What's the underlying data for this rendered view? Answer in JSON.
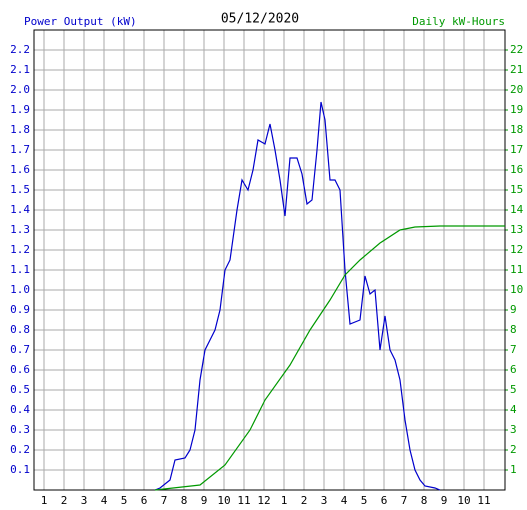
{
  "chart_data": {
    "type": "line",
    "title": "05/12/2020",
    "y_label": "Power Output (kW)",
    "y2_label": "Daily kW-Hours",
    "xlim": [
      0.5,
      24.05
    ],
    "xticks": [
      1,
      2,
      3,
      4,
      5,
      6,
      7,
      8,
      9,
      10,
      11,
      {
        "value": 12,
        "label": "12"
      },
      {
        "value": 13,
        "label": "1"
      },
      {
        "value": 14,
        "label": "2"
      },
      {
        "value": 15,
        "label": "3"
      },
      {
        "value": 16,
        "label": "4"
      },
      {
        "value": 17,
        "label": "5"
      },
      {
        "value": 18,
        "label": "6"
      },
      {
        "value": 19,
        "label": "7"
      },
      {
        "value": 20,
        "label": "8"
      },
      {
        "value": 21,
        "label": "9"
      },
      {
        "value": 22,
        "label": "10"
      },
      {
        "value": 23,
        "label": "11"
      }
    ],
    "ylim": [
      0,
      2.3
    ],
    "yticks": [
      0.1,
      0.2,
      0.3,
      0.4,
      0.5,
      0.6,
      0.7,
      0.8,
      0.9,
      {
        "value": 1,
        "label": "1.0"
      },
      1.1,
      1.2,
      1.3,
      1.4,
      1.5,
      1.6,
      1.7,
      1.8,
      1.9,
      {
        "value": 2,
        "label": "2.0"
      },
      2.1,
      2.2
    ],
    "y2lim": [
      0,
      23
    ],
    "y2ticks": [
      1,
      2,
      3,
      4,
      5,
      6,
      7,
      8,
      9,
      10,
      11,
      12,
      13,
      14,
      15,
      16,
      17,
      18,
      19,
      20,
      21,
      22
    ],
    "grid": true,
    "series": [
      {
        "name": "Power Output (kW)",
        "color": "#0000cc",
        "axis": "y",
        "x": [
          6.55,
          6.8,
          7.3,
          7.55,
          8.05,
          8.3,
          8.55,
          8.8,
          9.05,
          9.3,
          9.55,
          9.8,
          10.05,
          10.3,
          10.65,
          10.9,
          11.2,
          11.45,
          11.7,
          12.05,
          12.3,
          12.55,
          12.8,
          13.05,
          13.3,
          13.65,
          13.9,
          14.15,
          14.4,
          14.65,
          14.85,
          15.05,
          15.3,
          15.55,
          15.8,
          16.05,
          16.3,
          16.8,
          17.05,
          17.3,
          17.55,
          17.8,
          18.05,
          18.3,
          18.55,
          18.8,
          19.05,
          19.3,
          19.55,
          19.8,
          20.05,
          20.55,
          20.8
        ],
        "values": [
          0,
          0.01,
          0.05,
          0.15,
          0.16,
          0.2,
          0.3,
          0.55,
          0.7,
          0.75,
          0.8,
          0.9,
          1.1,
          1.15,
          1.4,
          1.55,
          1.5,
          1.6,
          1.75,
          1.73,
          1.83,
          1.7,
          1.55,
          1.37,
          1.66,
          1.66,
          1.58,
          1.43,
          1.45,
          1.7,
          1.94,
          1.85,
          1.55,
          1.55,
          1.5,
          1.1,
          0.83,
          0.85,
          1.07,
          0.98,
          1.0,
          0.7,
          0.87,
          0.7,
          0.65,
          0.55,
          0.35,
          0.2,
          0.1,
          0.05,
          0.02,
          0.01,
          0
        ]
      },
      {
        "name": "Daily kW-Hours",
        "color": "#009900",
        "axis": "y2",
        "x": [
          6.55,
          8.8,
          10.05,
          11.3,
          12.05,
          13.3,
          14.3,
          15.3,
          16.05,
          16.8,
          17.8,
          18.8,
          19.55,
          20.8,
          24.05
        ],
        "values": [
          0,
          0.25,
          1.25,
          3,
          4.5,
          6.25,
          8,
          9.5,
          10.75,
          11.5,
          12.35,
          13,
          13.15,
          13.2,
          13.2
        ]
      }
    ]
  }
}
